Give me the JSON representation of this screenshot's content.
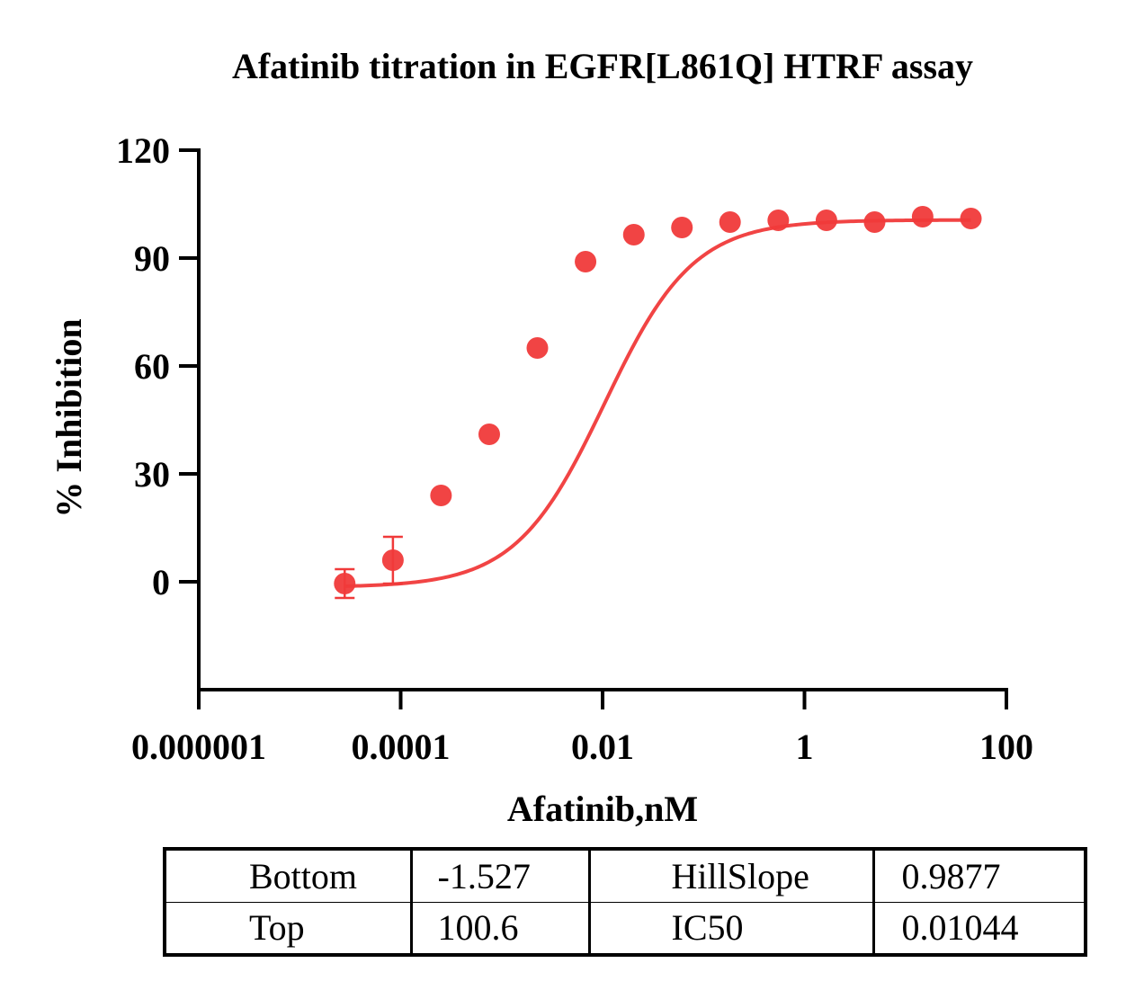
{
  "chart_data": {
    "type": "scatter",
    "title": "Afatinib titration in EGFR[L861Q] HTRF assay",
    "xlabel": "Afatinib,nM",
    "ylabel": "% Inhibition",
    "x_scale": "log",
    "xlim": [
      1e-06,
      100
    ],
    "ylim": [
      -30,
      120
    ],
    "x_ticks": [
      1e-06,
      0.0001,
      0.01,
      1,
      100
    ],
    "x_tick_labels": [
      "0.000001",
      "0.0001",
      "0.01",
      "1",
      "100"
    ],
    "y_ticks": [
      0,
      30,
      60,
      90,
      120
    ],
    "y_tick_labels": [
      "0",
      "30",
      "60",
      "90",
      "120"
    ],
    "grid": false,
    "color": "#f03a3a",
    "series": [
      {
        "x": [
          2.79e-05,
          8.38e-05,
          0.000251,
          0.000754,
          0.00226,
          0.00678,
          0.0204,
          0.0611,
          0.183,
          0.55,
          1.65,
          4.95,
          14.8,
          44.5
        ],
        "y": [
          -0.5,
          6,
          24,
          41,
          65,
          89,
          96.5,
          98.5,
          100,
          100.5,
          100.5,
          100,
          101.5,
          101
        ],
        "error": [
          4,
          6.5,
          0,
          0,
          0,
          0,
          0,
          0,
          0,
          0,
          0,
          0,
          0,
          0
        ]
      }
    ],
    "fit": {
      "model": "four-parameter logistic",
      "Bottom": -1.527,
      "Top": 100.6,
      "HillSlope": 0.9877,
      "IC50": 0.01044
    }
  },
  "table": {
    "rows": [
      [
        "Bottom",
        "-1.527",
        "HillSlope",
        "0.9877"
      ],
      [
        "Top",
        "100.6",
        "IC50",
        "0.01044"
      ]
    ]
  }
}
